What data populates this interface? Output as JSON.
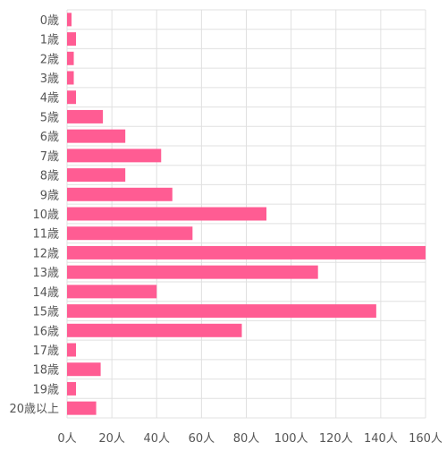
{
  "chart_data": {
    "type": "bar",
    "orientation": "horizontal",
    "categories": [
      "0歳",
      "1歳",
      "2歳",
      "3歳",
      "4歳",
      "5歳",
      "6歳",
      "7歳",
      "8歳",
      "9歳",
      "10歳",
      "11歳",
      "12歳",
      "13歳",
      "14歳",
      "15歳",
      "16歳",
      "17歳",
      "18歳",
      "19歳",
      "20歳以上"
    ],
    "values": [
      2,
      4,
      3,
      3,
      4,
      16,
      26,
      42,
      26,
      47,
      89,
      56,
      160,
      112,
      40,
      138,
      78,
      4,
      15,
      4,
      13
    ],
    "x_ticks": [
      "0人",
      "20人",
      "40人",
      "60人",
      "80人",
      "100人",
      "120人",
      "140人",
      "160人"
    ],
    "xlim": [
      0,
      160
    ],
    "grid": true,
    "bar_color": "#ff5c93",
    "grid_color": "#e0e0e0",
    "title": "",
    "xlabel": "",
    "ylabel": ""
  }
}
